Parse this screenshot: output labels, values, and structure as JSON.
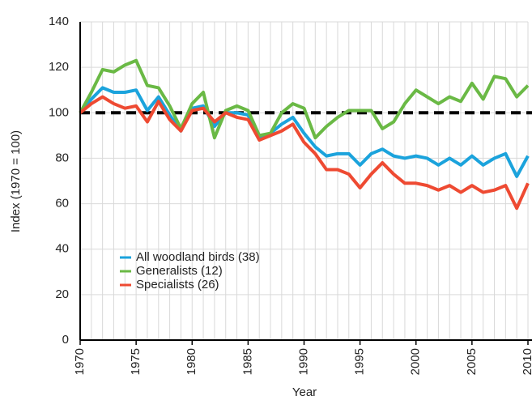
{
  "chart_data": {
    "type": "line",
    "x_label": "Year",
    "y_label": "Index (1970 = 100)",
    "x": [
      1970,
      1971,
      1972,
      1973,
      1974,
      1975,
      1976,
      1977,
      1978,
      1979,
      1980,
      1981,
      1982,
      1983,
      1984,
      1985,
      1986,
      1987,
      1988,
      1989,
      1990,
      1991,
      1992,
      1993,
      1994,
      1995,
      1996,
      1997,
      1998,
      1999,
      2000,
      2001,
      2002,
      2003,
      2004,
      2005,
      2006,
      2007,
      2008,
      2009,
      2010
    ],
    "series": [
      {
        "name": "All woodland birds (38)",
        "color": "#1ba3dc",
        "values": [
          100,
          106,
          111,
          109,
          109,
          110,
          101,
          107,
          99,
          92,
          102,
          103,
          94,
          100,
          100,
          99,
          89,
          91,
          95,
          98,
          91,
          85,
          81,
          82,
          82,
          77,
          82,
          84,
          81,
          80,
          81,
          80,
          77,
          80,
          77,
          81,
          77,
          80,
          82,
          72,
          81
        ]
      },
      {
        "name": "Generalists (12)",
        "color": "#6ab945",
        "values": [
          100,
          109,
          119,
          118,
          121,
          123,
          112,
          111,
          103,
          93,
          104,
          109,
          89,
          101,
          103,
          101,
          90,
          91,
          100,
          104,
          102,
          89,
          94,
          98,
          101,
          101,
          101,
          93,
          96,
          104,
          110,
          107,
          104,
          107,
          105,
          113,
          106,
          116,
          115,
          107,
          112
        ]
      },
      {
        "name": "Specialists (26)",
        "color": "#ee4a32",
        "values": [
          100,
          104,
          107,
          104,
          102,
          103,
          96,
          105,
          97,
          92,
          101,
          102,
          96,
          100,
          98,
          97,
          88,
          90,
          92,
          95,
          87,
          82,
          75,
          75,
          73,
          67,
          73,
          78,
          73,
          69,
          69,
          68,
          66,
          68,
          65,
          68,
          65,
          66,
          68,
          58,
          69
        ]
      }
    ],
    "reference_line": 100,
    "xlim": [
      1970,
      2010
    ],
    "xticks": [
      1970,
      1975,
      1980,
      1985,
      1990,
      1995,
      2000,
      2005,
      2010
    ],
    "ylim": [
      0,
      140
    ],
    "yticks": [
      0,
      20,
      40,
      60,
      80,
      100,
      120,
      140
    ],
    "grid": true,
    "legend": "lower left"
  }
}
